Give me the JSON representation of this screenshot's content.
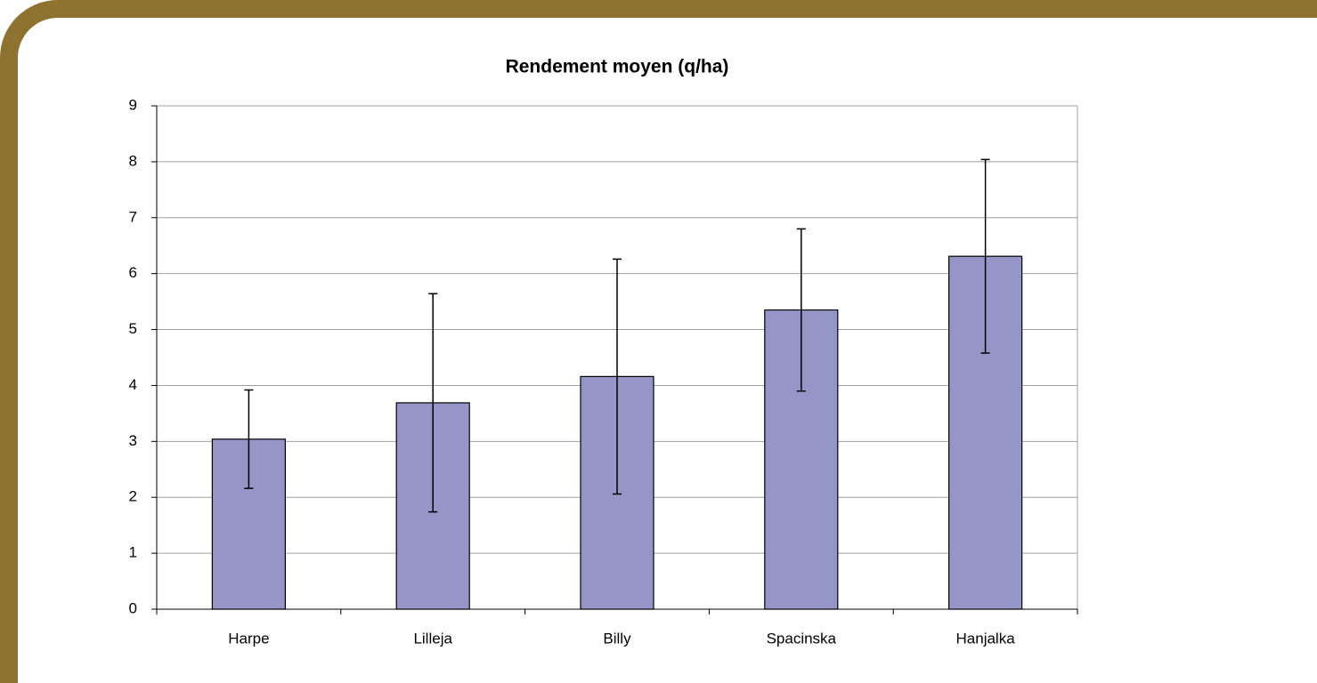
{
  "chart_data": {
    "type": "bar",
    "title": "Rendement moyen (q/ha)",
    "categories": [
      "Harpe",
      "Lilleja",
      "Billy",
      "Spacinska",
      "Hanjalka"
    ],
    "values": [
      3.04,
      3.69,
      4.16,
      5.35,
      6.31
    ],
    "errors": [
      0.88,
      1.95,
      2.1,
      1.45,
      1.73
    ],
    "color": "#9595c8",
    "ylim": [
      0,
      9
    ],
    "yticks": [
      0,
      1,
      2,
      3,
      4,
      5,
      6,
      7,
      8,
      9
    ],
    "grid": true
  }
}
